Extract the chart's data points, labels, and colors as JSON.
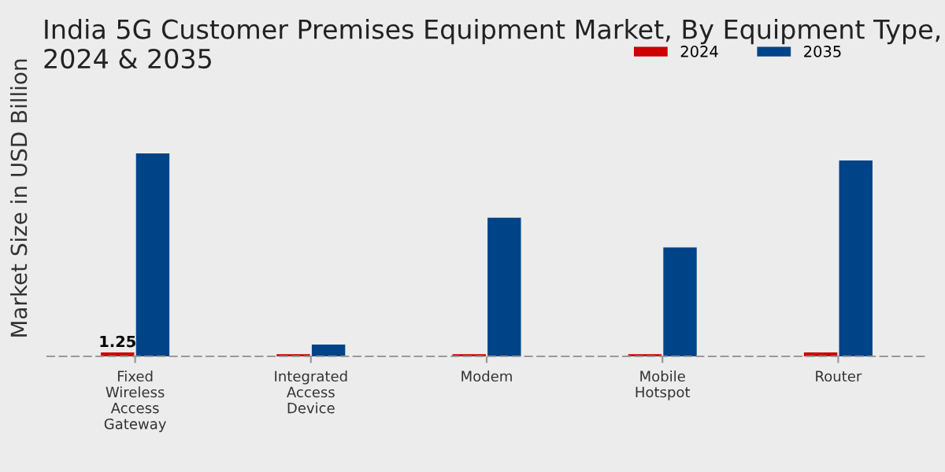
{
  "chart_data": {
    "type": "bar",
    "title": "India 5G Customer Premises Equipment Market, By Equipment Type, 2024 & 2035",
    "ylabel": "Market Size in USD Billion",
    "categories": [
      "Fixed\nWireless\nAccess\nGateway",
      "Integrated\nAccess\nDevice",
      "Modem",
      "Mobile\nHotspot",
      "Router"
    ],
    "series": [
      {
        "name": "2024",
        "color": "#cc0000",
        "values": [
          1.25,
          0.7,
          0.7,
          0.7,
          1.25
        ],
        "value_labels": [
          "1.25",
          null,
          null,
          null,
          null
        ]
      },
      {
        "name": "2035",
        "color": "#004488",
        "values": [
          63.5,
          3.7,
          43.4,
          34.1,
          61.3
        ]
      }
    ],
    "legend": "top right",
    "grid": false
  }
}
